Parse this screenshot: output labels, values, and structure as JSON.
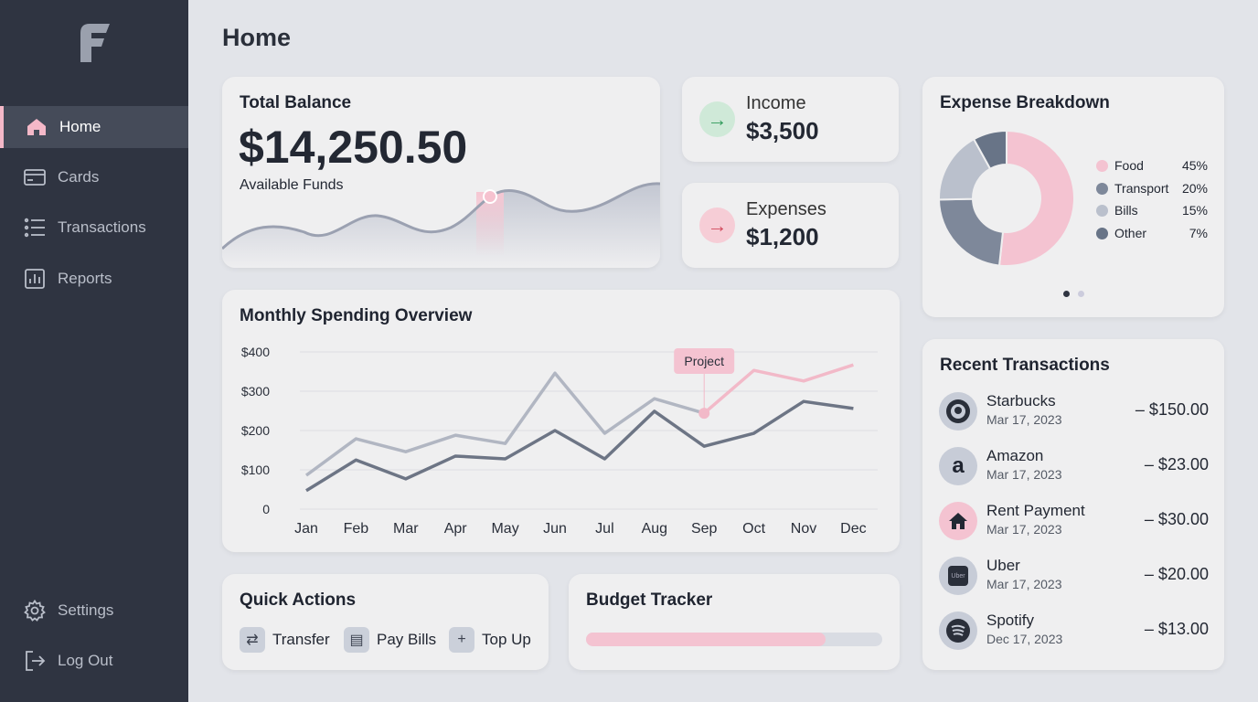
{
  "sidebar": {
    "items": [
      {
        "label": "Home",
        "icon": "home-icon",
        "active": true
      },
      {
        "label": "Cards",
        "icon": "card-icon"
      },
      {
        "label": "Transactions",
        "icon": "list-icon"
      },
      {
        "label": "Reports",
        "icon": "bar-chart-icon"
      }
    ],
    "bottom": [
      {
        "label": "Settings",
        "icon": "gear-icon"
      },
      {
        "label": "Log Out",
        "icon": "logout-icon"
      }
    ]
  },
  "page": {
    "title": "Home"
  },
  "balance": {
    "title": "Total Balance",
    "amount": "$14,250.50",
    "subtitle": "Available Funds"
  },
  "income": {
    "label": "Income",
    "amount": "$3,500",
    "color": "#2f9a5a"
  },
  "expenses": {
    "label": "Expenses",
    "amount": "$1,200",
    "color": "#d24a5c"
  },
  "breakdown": {
    "title": "Expense Breakdown",
    "items": [
      {
        "label": "Food",
        "pct": "45%",
        "value": 45,
        "color": "#f4c3d1"
      },
      {
        "label": "Transport",
        "pct": "20%",
        "value": 20,
        "color": "#7e889a"
      },
      {
        "label": "Bills",
        "pct": "15%",
        "value": 15,
        "color": "#bac0cc"
      },
      {
        "label": "Other",
        "pct": "7%",
        "value": 7,
        "color": "#687487"
      }
    ],
    "page": 1,
    "pages": 2
  },
  "spending": {
    "title": "Monthly Spending Overview",
    "annotation": "Project"
  },
  "chart_data": {
    "type": "line",
    "categories": [
      "Jan",
      "Feb",
      "Mar",
      "Apr",
      "May",
      "Jun",
      "Jul",
      "Aug",
      "Sep",
      "Oct",
      "Nov",
      "Dec"
    ],
    "yticks": [
      "0",
      "$100",
      "$200",
      "$300",
      "$400"
    ],
    "ylim": [
      0,
      400
    ],
    "grid": true,
    "series": [
      {
        "values": [
          86,
          179,
          146,
          188,
          167,
          346,
          193,
          281,
          244,
          null,
          null,
          null
        ],
        "color": "#b1b6c2"
      },
      {
        "values": [
          null,
          null,
          null,
          null,
          null,
          null,
          null,
          null,
          244,
          353,
          326,
          367
        ],
        "color": "#f2b9c8"
      },
      {
        "values": [
          47,
          125,
          77,
          135,
          128,
          200,
          128,
          249,
          160,
          193,
          274,
          256
        ],
        "color": "#6d7585"
      }
    ]
  },
  "quick": {
    "title": "Quick Actions",
    "actions": [
      {
        "label": "Transfer",
        "icon": "swap-icon"
      },
      {
        "label": "Pay Bills",
        "icon": "document-icon"
      },
      {
        "label": "Top Up",
        "icon": "plus-icon"
      }
    ]
  },
  "budget": {
    "title": "Budget Tracker",
    "progress": 0.81
  },
  "recent": {
    "title": "Recent Transactions",
    "items": [
      {
        "name": "Starbucks",
        "date": "Mar 17, 2023",
        "amount": "– $150.00",
        "icon": "starbucks-logo"
      },
      {
        "name": "Amazon",
        "date": "Mar 17, 2023",
        "amount": "– $23.00",
        "icon": "amazon-logo"
      },
      {
        "name": "Rent Payment",
        "date": "Mar 17, 2023",
        "amount": "– $30.00",
        "icon": "house-icon"
      },
      {
        "name": "Uber",
        "date": "Mar 17, 2023",
        "amount": "– $20.00",
        "icon": "uber-logo",
        "logo_text": "Uber"
      },
      {
        "name": "Spotify",
        "date": "Dec 17, 2023",
        "amount": "– $13.00",
        "icon": "spotify-logo"
      }
    ]
  }
}
